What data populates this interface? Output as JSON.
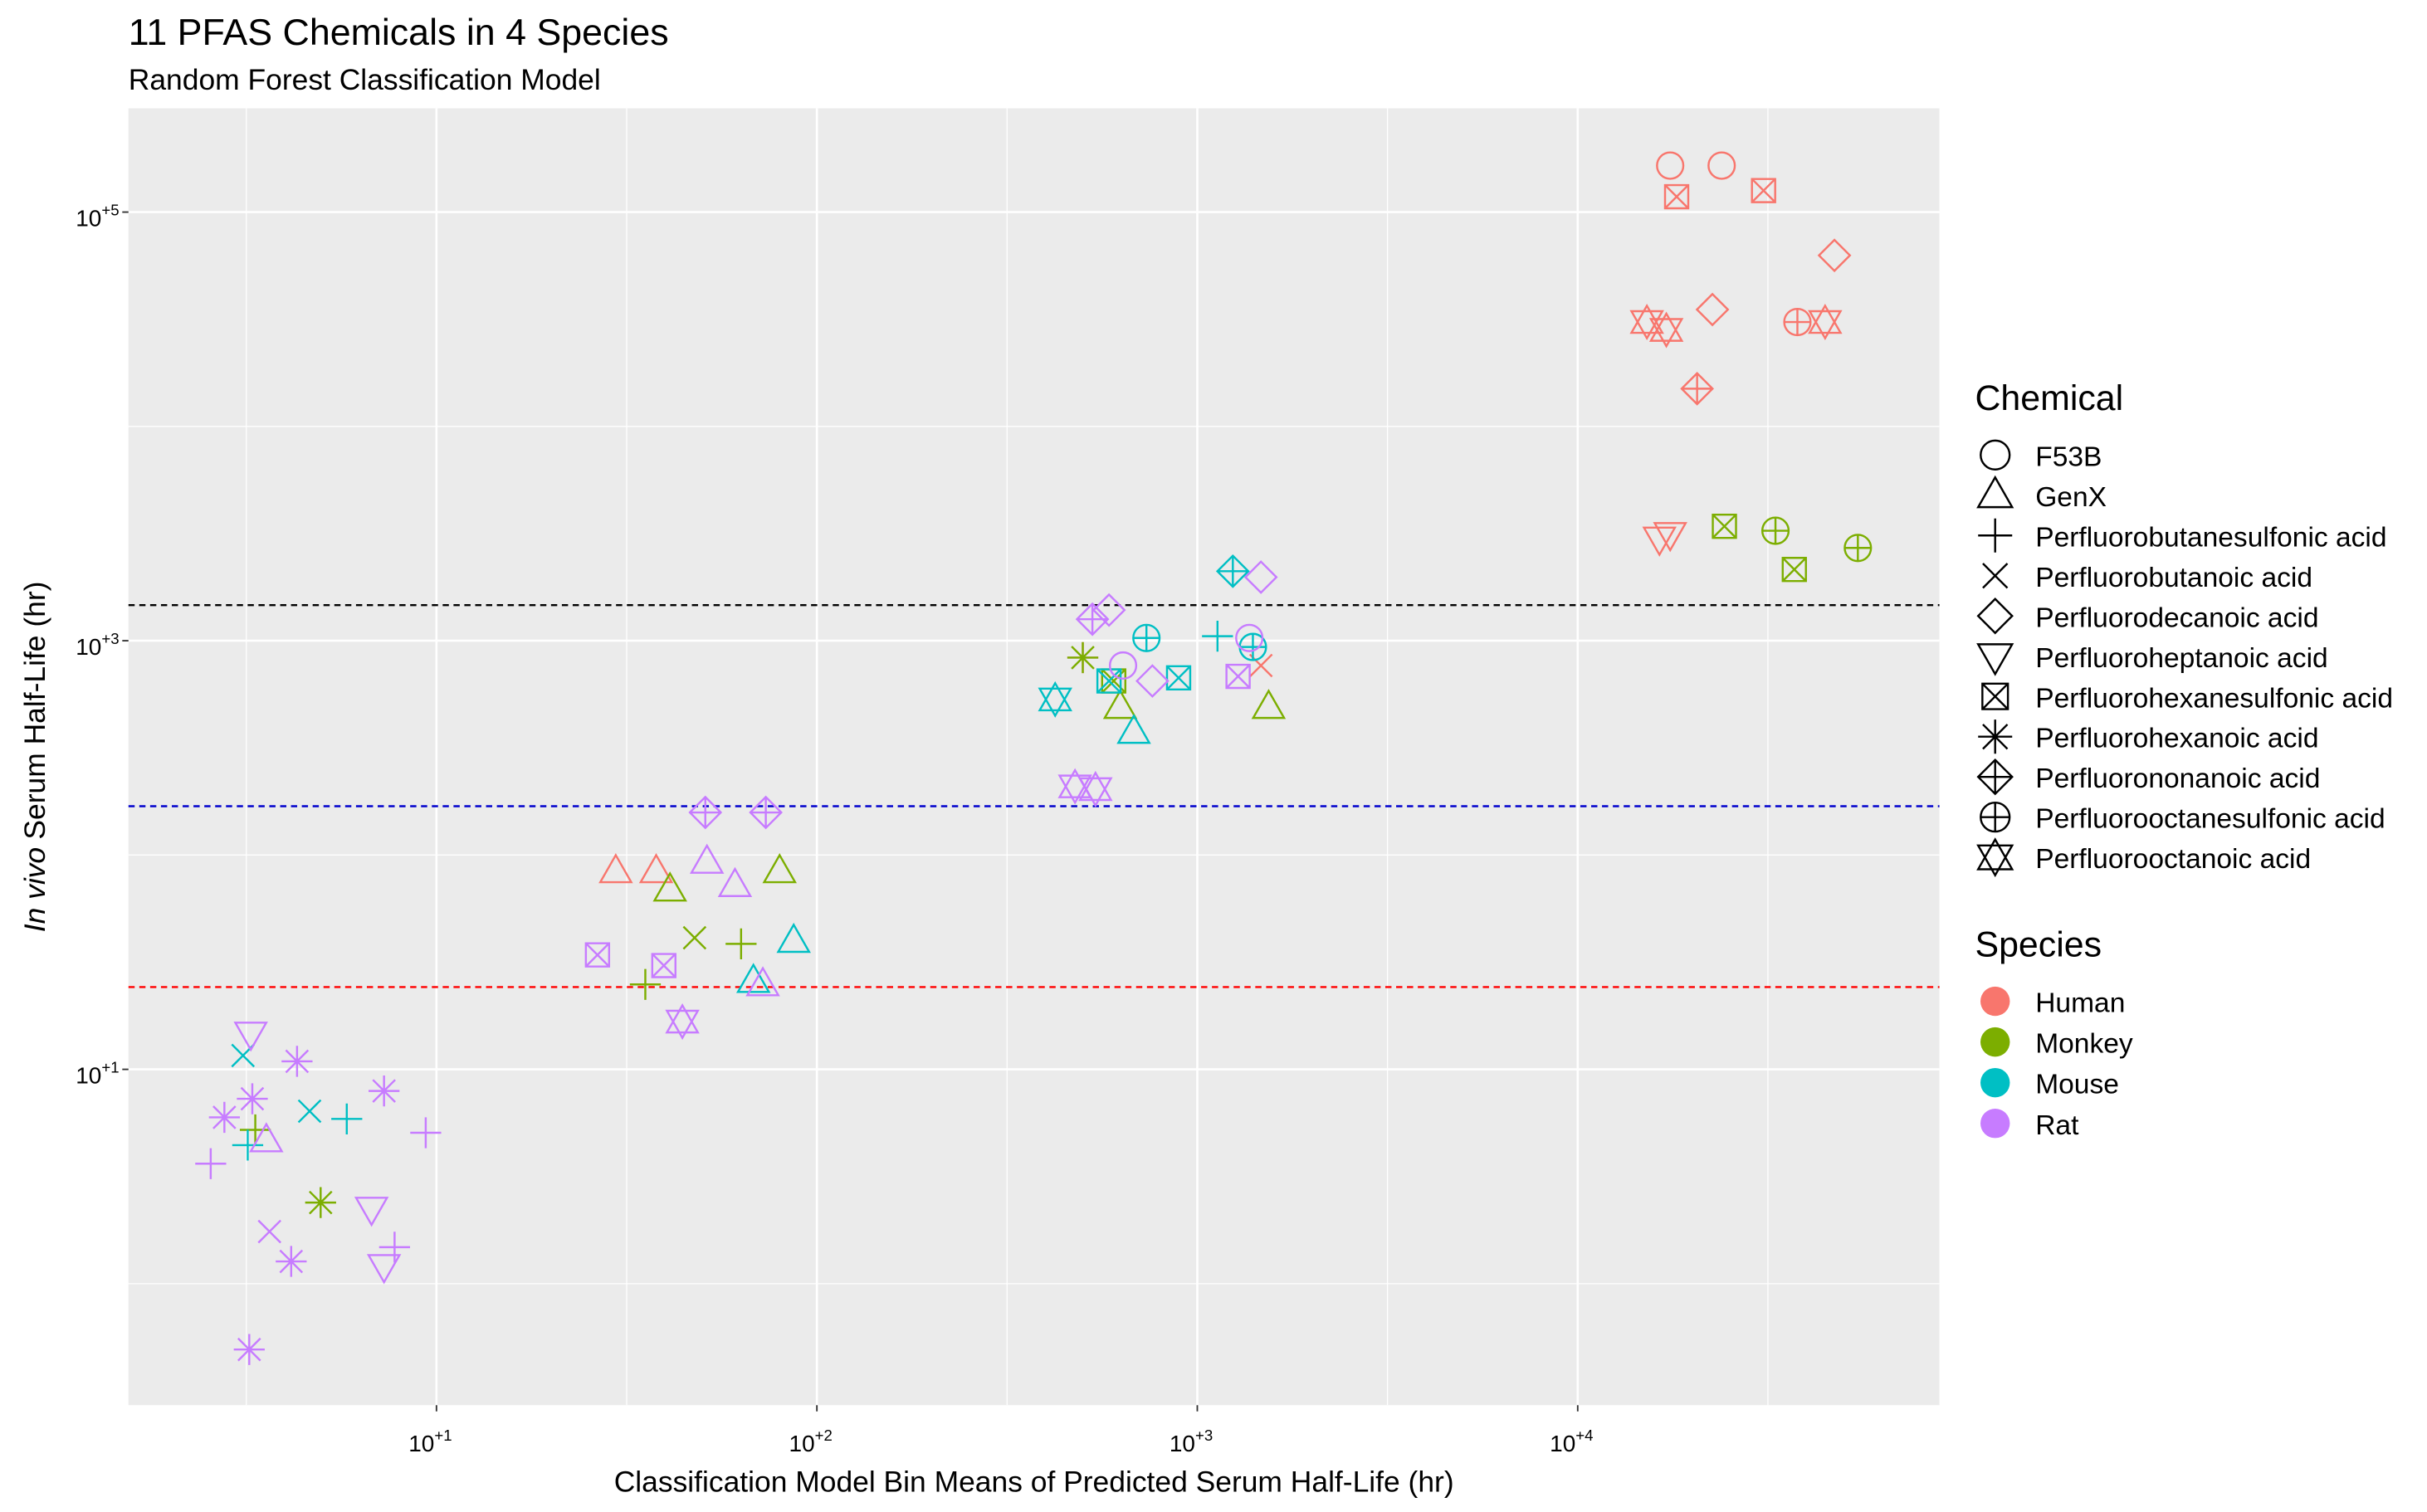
{
  "chart_data": {
    "type": "scatter",
    "title": "11 PFAS Chemicals in 4 Species",
    "subtitle": "Random Forest Classification Model",
    "xlabel": "Classification Model Bin Means of Predicted Serum Half-Life (hr)",
    "ylabel": {
      "italic": "In vivo",
      "text": "Serum Half-Life (hr)"
    },
    "log_x": true,
    "log_y": true,
    "grid": true,
    "xlim": [
      1.55,
      89300
    ],
    "ylim": [
      0.271,
      304800
    ],
    "xticks": [
      {
        "value": 10,
        "label": "10",
        "exponent": "+1"
      },
      {
        "value": 100,
        "label": "10",
        "exponent": "+2"
      },
      {
        "value": 1000,
        "label": "10",
        "exponent": "+3"
      },
      {
        "value": 10000,
        "label": "10",
        "exponent": "+4"
      }
    ],
    "yticks": [
      {
        "value": 10,
        "label": "10",
        "exponent": "+1"
      },
      {
        "value": 1000,
        "label": "10",
        "exponent": "+3"
      },
      {
        "value": 100000,
        "label": "10",
        "exponent": "+5"
      }
    ],
    "xminor": [
      3.162,
      31.62,
      316.2,
      3162,
      31623
    ],
    "yminor": [
      1,
      100,
      10000
    ],
    "reference_lines": [
      {
        "value": 1466,
        "color": "#000000"
      },
      {
        "value": 169,
        "color": "#0000cd"
      },
      {
        "value": 24.2,
        "color": "#ff0000"
      }
    ],
    "legend_titles": {
      "shape": "Chemical",
      "color": "Species"
    },
    "chemicals": [
      {
        "name": "F53B",
        "shape": "circle"
      },
      {
        "name": "GenX",
        "shape": "triangle"
      },
      {
        "name": "Perfluorobutanesulfonic acid",
        "shape": "plus"
      },
      {
        "name": "Perfluorobutanoic acid",
        "shape": "cross"
      },
      {
        "name": "Perfluorodecanoic acid",
        "shape": "diamond"
      },
      {
        "name": "Perfluoroheptanoic acid",
        "shape": "triangle-down"
      },
      {
        "name": "Perfluorohexanesulfonic acid",
        "shape": "square-cross"
      },
      {
        "name": "Perfluorohexanoic acid",
        "shape": "asterisk"
      },
      {
        "name": "Perfluorononanoic acid",
        "shape": "diamond-plus"
      },
      {
        "name": "Perfluorooctanesulfonic acid",
        "shape": "circle-plus"
      },
      {
        "name": "Perfluorooctanoic acid",
        "shape": "star"
      }
    ],
    "series": [
      {
        "name": "Human",
        "color": "#F8766D",
        "x": [
          17500,
          23900,
          18200,
          30800,
          47300,
          22600,
          15200,
          17100,
          44700,
          37800,
          20600,
          16400,
          17500,
          500,
          1470,
          29.6,
          37.8
        ],
        "y": [
          164800,
          164800,
          118000,
          126000,
          62800,
          35100,
          30700,
          28200,
          30700,
          30700,
          15000,
          3000,
          3150,
          834,
          766,
          83.9,
          83.9
        ],
        "chemical": [
          0,
          0,
          6,
          6,
          4,
          4,
          10,
          10,
          10,
          9,
          8,
          5,
          5,
          2,
          3,
          1,
          1
        ]
      },
      {
        "name": "Monkey",
        "color": "#7CAE00",
        "x": [
          24300,
          37100,
          33100,
          54500,
          1540,
          627,
          603,
          79.8,
          41.1,
          63.2,
          35.4,
          47.7,
          4.96,
          3.34,
          500
        ],
        "y": [
          3420,
          2150,
          3260,
          2710,
          490,
          490,
          649,
          83.9,
          68.9,
          38.5,
          24.9,
          41.1,
          2.39,
          5.22,
          834
        ],
        "chemical": [
          6,
          6,
          9,
          9,
          1,
          1,
          6,
          1,
          1,
          2,
          2,
          3,
          7,
          2,
          7
        ]
      },
      {
        "name": "Mouse",
        "color": "#00BFC4",
        "x": [
          1240,
          735,
          1400,
          1130,
          423,
          893,
          586,
          681,
          86.9,
          68.1,
          3.1,
          4.64,
          5.81,
          3.19
        ],
        "y": [
          2110,
          1030,
          935,
          1050,
          532,
          671,
          649,
          375,
          39.7,
          25.8,
          11.6,
          6.38,
          5.87,
          4.43
        ],
        "chemical": [
          8,
          9,
          9,
          2,
          10,
          6,
          6,
          1,
          1,
          1,
          3,
          3,
          2,
          2
        ]
      },
      {
        "name": "Rat",
        "color": "#C77CFF",
        "x": [
          1470,
          586,
          530,
          1370,
          638,
          477,
          540,
          1280,
          762,
          50.9,
          73.4,
          51.4,
          60.9,
          72.1,
          26.5,
          39.6,
          44.3,
          3.25,
          7.28,
          6.75,
          4.3,
          7.28,
          2.77,
          3.64,
          4.15,
          3.22,
          9.37,
          2.55,
          7.76,
          3.57,
          3.28
        ],
        "y": [
          1980,
          1390,
          1260,
          1030,
          766,
          209,
          203,
          682,
          649,
          158,
          158,
          92.9,
          72.3,
          24.9,
          34.2,
          30.5,
          16.7,
          14.7,
          1.21,
          2.24,
          10.9,
          7.93,
          5.97,
          1.75,
          1.27,
          0.493,
          5.06,
          3.63,
          1.48,
          4.66,
          7.29
        ],
        "chemical": [
          4,
          4,
          8,
          0,
          0,
          10,
          10,
          6,
          4,
          8,
          8,
          1,
          1,
          1,
          6,
          6,
          10,
          5,
          5,
          5,
          7,
          7,
          7,
          3,
          7,
          7,
          2,
          2,
          2,
          1,
          7
        ]
      }
    ]
  }
}
